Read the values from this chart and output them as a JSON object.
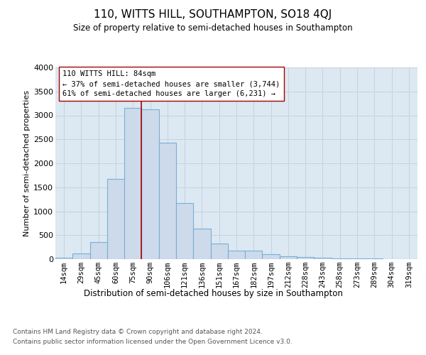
{
  "title": "110, WITTS HILL, SOUTHAMPTON, SO18 4QJ",
  "subtitle": "Size of property relative to semi-detached houses in Southampton",
  "xlabel": "Distribution of semi-detached houses by size in Southampton",
  "ylabel": "Number of semi-detached properties",
  "categories": [
    "14sqm",
    "29sqm",
    "45sqm",
    "60sqm",
    "75sqm",
    "90sqm",
    "106sqm",
    "121sqm",
    "136sqm",
    "151sqm",
    "167sqm",
    "182sqm",
    "197sqm",
    "212sqm",
    "228sqm",
    "243sqm",
    "258sqm",
    "273sqm",
    "289sqm",
    "304sqm",
    "319sqm"
  ],
  "values": [
    25,
    120,
    360,
    1680,
    3150,
    3130,
    2430,
    1170,
    630,
    330,
    185,
    175,
    110,
    65,
    45,
    35,
    20,
    12,
    8,
    3,
    1
  ],
  "bar_color": "#ccdaeb",
  "bar_edge_color": "#7aafd4",
  "vline_color": "#aa0000",
  "vline_x": 4.5,
  "annotation_line0": "110 WITTS HILL: 84sqm",
  "annotation_line1": "← 37% of semi-detached houses are smaller (3,744)",
  "annotation_line2": "61% of semi-detached houses are larger (6,231) →",
  "ylim": [
    0,
    4000
  ],
  "yticks": [
    0,
    500,
    1000,
    1500,
    2000,
    2500,
    3000,
    3500,
    4000
  ],
  "grid_color": "#c5d3e0",
  "background_color": "#dce8f2",
  "title_fontsize": 11,
  "subtitle_fontsize": 9,
  "footer1": "Contains HM Land Registry data © Crown copyright and database right 2024.",
  "footer2": "Contains public sector information licensed under the Open Government Licence v3.0."
}
